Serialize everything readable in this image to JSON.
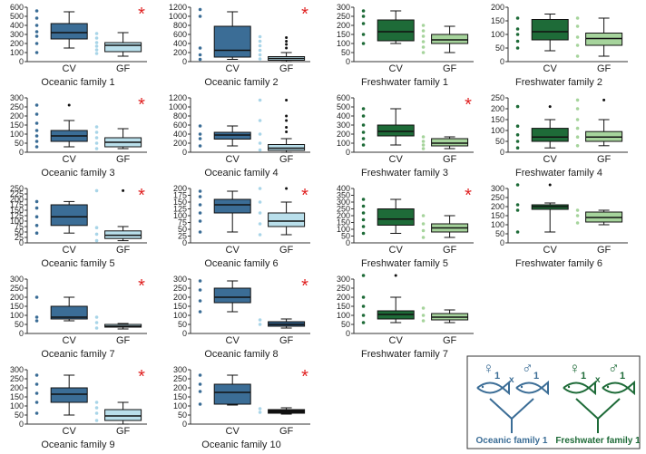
{
  "chart_data": [
    {
      "type": "box",
      "title": "Oceanic family 1",
      "annotation": "*",
      "ylim": [
        0,
        600
      ],
      "yticks": [
        0,
        100,
        200,
        300,
        400,
        500,
        600
      ],
      "groups": [
        {
          "name": "CV",
          "color": "#3b6d96",
          "point_color": "#3b6d96",
          "whisker_low": 150,
          "q1": 250,
          "median": 320,
          "q3": 420,
          "whisker_high": 550,
          "outliers": [],
          "points": [
            100,
            200,
            280,
            330,
            400,
            480,
            560
          ]
        },
        {
          "name": "GF",
          "color": "#b9dfeb",
          "point_color": "#a9d5e8",
          "whisker_low": 60,
          "q1": 110,
          "median": 180,
          "q3": 210,
          "whisker_high": 320,
          "outliers": [],
          "points": [
            90,
            130,
            170,
            210,
            260,
            310
          ]
        }
      ]
    },
    {
      "type": "box",
      "title": "Oceanic family 2",
      "annotation": "*",
      "ylim": [
        0,
        1200
      ],
      "yticks": [
        0,
        200,
        400,
        600,
        800,
        1000,
        1200
      ],
      "groups": [
        {
          "name": "CV",
          "color": "#3b6d96",
          "point_color": "#3b6d96",
          "whisker_low": 50,
          "q1": 100,
          "median": 250,
          "q3": 780,
          "whisker_high": 1100,
          "outliers": [],
          "points": [
            50,
            150,
            300,
            1000,
            1150
          ]
        },
        {
          "name": "GF",
          "color": "#b9dfeb",
          "point_color": "#a9d5e8",
          "whisker_low": 0,
          "q1": 30,
          "median": 70,
          "q3": 110,
          "whisker_high": 200,
          "outliers": [
            300,
            380,
            450,
            530
          ],
          "points": [
            60,
            150,
            250,
            350,
            450,
            550
          ]
        }
      ]
    },
    {
      "type": "box",
      "title": "Freshwater family 1",
      "ylim": [
        0,
        300
      ],
      "yticks": [
        0,
        50,
        100,
        150,
        200,
        250,
        300
      ],
      "groups": [
        {
          "name": "CV",
          "color": "#1e6b38",
          "point_color": "#1e6b38",
          "whisker_low": 100,
          "q1": 115,
          "median": 165,
          "q3": 230,
          "whisker_high": 280,
          "outliers": [],
          "points": [
            100,
            150,
            210,
            250,
            280
          ]
        },
        {
          "name": "GF",
          "color": "#a6d49c",
          "point_color": "#a6d49c",
          "whisker_low": 50,
          "q1": 100,
          "median": 120,
          "q3": 150,
          "whisker_high": 195,
          "outliers": [],
          "points": [
            50,
            80,
            110,
            140,
            170,
            200
          ]
        }
      ]
    },
    {
      "type": "box",
      "title": "Freshwater family 2",
      "ylim": [
        0,
        200
      ],
      "yticks": [
        0,
        50,
        100,
        150,
        200
      ],
      "groups": [
        {
          "name": "CV",
          "color": "#1e6b38",
          "point_color": "#1e6b38",
          "whisker_low": 40,
          "q1": 80,
          "median": 110,
          "q3": 155,
          "whisker_high": 175,
          "outliers": [],
          "points": [
            50,
            75,
            100,
            120,
            160
          ]
        },
        {
          "name": "GF",
          "color": "#a6d49c",
          "point_color": "#a6d49c",
          "whisker_low": 20,
          "q1": 60,
          "median": 85,
          "q3": 105,
          "whisker_high": 160,
          "outliers": [],
          "points": [
            20,
            60,
            90,
            130,
            160
          ]
        }
      ]
    },
    {
      "type": "box",
      "title": "Oceanic family 3",
      "annotation": "*",
      "ylim": [
        0,
        300
      ],
      "yticks": [
        0,
        50,
        100,
        150,
        200,
        250,
        300
      ],
      "groups": [
        {
          "name": "CV",
          "color": "#3b6d96",
          "point_color": "#3b6d96",
          "whisker_low": 30,
          "q1": 60,
          "median": 90,
          "q3": 120,
          "whisker_high": 175,
          "outliers": [
            260
          ],
          "points": [
            30,
            60,
            90,
            120,
            160,
            210,
            260
          ]
        },
        {
          "name": "GF",
          "color": "#b9dfeb",
          "point_color": "#a9d5e8",
          "whisker_low": 20,
          "q1": 30,
          "median": 55,
          "q3": 80,
          "whisker_high": 130,
          "outliers": [],
          "points": [
            20,
            50,
            80,
            110,
            140
          ]
        }
      ]
    },
    {
      "type": "box",
      "title": "Oceanic family 4",
      "ylim": [
        0,
        1200
      ],
      "yticks": [
        0,
        200,
        400,
        600,
        800,
        1000,
        1200
      ],
      "groups": [
        {
          "name": "CV",
          "color": "#3b6d96",
          "point_color": "#3b6d96",
          "whisker_low": 140,
          "q1": 290,
          "median": 380,
          "q3": 440,
          "whisker_high": 580,
          "outliers": [],
          "points": [
            140,
            300,
            400,
            580
          ]
        },
        {
          "name": "GF",
          "color": "#b9dfeb",
          "point_color": "#a9d5e8",
          "whisker_low": 0,
          "q1": 40,
          "median": 90,
          "q3": 170,
          "whisker_high": 300,
          "outliers": [
            450,
            550,
            700,
            800,
            1150
          ],
          "points": [
            50,
            200,
            400,
            700,
            1150
          ]
        }
      ]
    },
    {
      "type": "box",
      "title": "Freshwater family 3",
      "annotation": "*",
      "ylim": [
        0,
        600
      ],
      "yticks": [
        0,
        100,
        200,
        300,
        400,
        500,
        600
      ],
      "groups": [
        {
          "name": "CV",
          "color": "#1e6b38",
          "point_color": "#1e6b38",
          "whisker_low": 80,
          "q1": 180,
          "median": 230,
          "q3": 300,
          "whisker_high": 480,
          "outliers": [],
          "points": [
            80,
            150,
            220,
            300,
            400,
            480
          ]
        },
        {
          "name": "GF",
          "color": "#a6d49c",
          "point_color": "#a6d49c",
          "whisker_low": 40,
          "q1": 70,
          "median": 100,
          "q3": 150,
          "whisker_high": 170,
          "outliers": [],
          "points": [
            40,
            80,
            120,
            170
          ]
        }
      ]
    },
    {
      "type": "box",
      "title": "Freshwater family 4",
      "ylim": [
        0,
        250
      ],
      "yticks": [
        0,
        50,
        100,
        150,
        200,
        250
      ],
      "groups": [
        {
          "name": "CV",
          "color": "#1e6b38",
          "point_color": "#1e6b38",
          "whisker_low": 20,
          "q1": 50,
          "median": 70,
          "q3": 110,
          "whisker_high": 150,
          "outliers": [
            210
          ],
          "points": [
            20,
            50,
            80,
            120,
            210
          ]
        },
        {
          "name": "GF",
          "color": "#a6d49c",
          "point_color": "#a6d49c",
          "whisker_low": 30,
          "q1": 50,
          "median": 70,
          "q3": 95,
          "whisker_high": 150,
          "outliers": [
            240
          ],
          "points": [
            30,
            70,
            110,
            150,
            200,
            240
          ]
        }
      ]
    },
    {
      "type": "box",
      "title": "Oceanic family 5",
      "annotation": "*",
      "ylim": [
        0,
        250
      ],
      "yticks": [
        0,
        25,
        50,
        75,
        100,
        125,
        150,
        175,
        200,
        225,
        250
      ],
      "groups": [
        {
          "name": "CV",
          "color": "#3b6d96",
          "point_color": "#3b6d96",
          "whisker_low": 45,
          "q1": 80,
          "median": 120,
          "q3": 175,
          "whisker_high": 190,
          "outliers": [],
          "points": [
            45,
            80,
            120,
            160,
            190
          ]
        },
        {
          "name": "GF",
          "color": "#b9dfeb",
          "point_color": "#a9d5e8",
          "whisker_low": 10,
          "q1": 20,
          "median": 35,
          "q3": 55,
          "whisker_high": 75,
          "outliers": [
            240
          ],
          "points": [
            10,
            40,
            70,
            240
          ]
        }
      ]
    },
    {
      "type": "box",
      "title": "Oceanic family 6",
      "annotation": "*",
      "ylim": [
        0,
        200
      ],
      "yticks": [
        0,
        25,
        50,
        75,
        100,
        125,
        150,
        175,
        200
      ],
      "groups": [
        {
          "name": "CV",
          "color": "#3b6d96",
          "point_color": "#3b6d96",
          "whisker_low": 40,
          "q1": 110,
          "median": 140,
          "q3": 160,
          "whisker_high": 190,
          "outliers": [],
          "points": [
            40,
            80,
            110,
            140,
            170,
            190
          ]
        },
        {
          "name": "GF",
          "color": "#b9dfeb",
          "point_color": "#a9d5e8",
          "whisker_low": 30,
          "q1": 60,
          "median": 80,
          "q3": 110,
          "whisker_high": 150,
          "outliers": [
            200
          ],
          "points": [
            30,
            70,
            110,
            150,
            200
          ]
        }
      ]
    },
    {
      "type": "box",
      "title": "Freshwater family 5",
      "annotation": "*",
      "ylim": [
        0,
        400
      ],
      "yticks": [
        0,
        50,
        100,
        150,
        200,
        250,
        300,
        350,
        400
      ],
      "groups": [
        {
          "name": "CV",
          "color": "#1e6b38",
          "point_color": "#1e6b38",
          "whisker_low": 70,
          "q1": 130,
          "median": 175,
          "q3": 250,
          "whisker_high": 320,
          "outliers": [],
          "points": [
            70,
            120,
            170,
            220,
            270,
            320
          ]
        },
        {
          "name": "GF",
          "color": "#a6d49c",
          "point_color": "#a6d49c",
          "whisker_low": 40,
          "q1": 80,
          "median": 110,
          "q3": 140,
          "whisker_high": 200,
          "outliers": [],
          "points": [
            40,
            90,
            140,
            200
          ]
        }
      ]
    },
    {
      "type": "box",
      "title": "Freshwater family 6",
      "ylim": [
        0,
        300
      ],
      "yticks": [
        0,
        50,
        100,
        150,
        200,
        250,
        300
      ],
      "groups": [
        {
          "name": "CV",
          "color": "#1e6b38",
          "point_color": "#1e6b38",
          "whisker_low": 60,
          "q1": 185,
          "median": 200,
          "q3": 210,
          "whisker_high": 220,
          "outliers": [
            320
          ],
          "points": [
            60,
            180,
            210,
            320
          ]
        },
        {
          "name": "GF",
          "color": "#a6d49c",
          "point_color": "#a6d49c",
          "whisker_low": 100,
          "q1": 115,
          "median": 140,
          "q3": 170,
          "whisker_high": 180,
          "outliers": [],
          "points": [
            110,
            150,
            180
          ]
        }
      ]
    },
    {
      "type": "box",
      "title": "Oceanic family 7",
      "annotation": "*",
      "ylim": [
        0,
        300
      ],
      "yticks": [
        0,
        50,
        100,
        150,
        200,
        250,
        300
      ],
      "groups": [
        {
          "name": "CV",
          "color": "#3b6d96",
          "point_color": "#3b6d96",
          "whisker_low": 70,
          "q1": 80,
          "median": 90,
          "q3": 150,
          "whisker_high": 200,
          "outliers": [],
          "points": [
            70,
            90,
            200
          ]
        },
        {
          "name": "GF",
          "color": "#b9dfeb",
          "point_color": "#a9d5e8",
          "whisker_low": 25,
          "q1": 35,
          "median": 40,
          "q3": 50,
          "whisker_high": 55,
          "outliers": [],
          "points": [
            30,
            60,
            90
          ]
        }
      ]
    },
    {
      "type": "box",
      "title": "Oceanic family 8",
      "annotation": "*",
      "ylim": [
        0,
        300
      ],
      "yticks": [
        0,
        50,
        100,
        150,
        200,
        250,
        300
      ],
      "groups": [
        {
          "name": "CV",
          "color": "#3b6d96",
          "point_color": "#3b6d96",
          "whisker_low": 120,
          "q1": 170,
          "median": 200,
          "q3": 250,
          "whisker_high": 290,
          "outliers": [],
          "points": [
            120,
            180,
            240,
            290
          ]
        },
        {
          "name": "GF",
          "color": "#2f5d86",
          "point_color": "#a9d5e8",
          "whisker_low": 30,
          "q1": 40,
          "median": 50,
          "q3": 65,
          "whisker_high": 80,
          "outliers": [],
          "points": [
            50,
            75
          ]
        }
      ]
    },
    {
      "type": "box",
      "title": "Freshwater family 7",
      "ylim": [
        0,
        300
      ],
      "yticks": [
        0,
        50,
        100,
        150,
        200,
        250,
        300
      ],
      "groups": [
        {
          "name": "CV",
          "color": "#1e6b38",
          "point_color": "#1e6b38",
          "whisker_low": 60,
          "q1": 80,
          "median": 105,
          "q3": 125,
          "whisker_high": 200,
          "outliers": [
            320
          ],
          "points": [
            60,
            100,
            150,
            200,
            320
          ]
        },
        {
          "name": "GF",
          "color": "#a6d49c",
          "point_color": "#a6d49c",
          "whisker_low": 60,
          "q1": 75,
          "median": 90,
          "q3": 110,
          "whisker_high": 130,
          "outliers": [],
          "points": [
            70,
            100,
            140
          ]
        }
      ]
    },
    {
      "type": "box",
      "title": "Oceanic family 9",
      "annotation": "*",
      "ylim": [
        0,
        300
      ],
      "yticks": [
        0,
        50,
        100,
        150,
        200,
        250,
        300
      ],
      "groups": [
        {
          "name": "CV",
          "color": "#3b6d96",
          "point_color": "#3b6d96",
          "whisker_low": 50,
          "q1": 120,
          "median": 165,
          "q3": 200,
          "whisker_high": 270,
          "outliers": [],
          "points": [
            60,
            120,
            170,
            220,
            270
          ]
        },
        {
          "name": "GF",
          "color": "#b9dfeb",
          "point_color": "#a9d5e8",
          "whisker_low": 0,
          "q1": 20,
          "median": 45,
          "q3": 80,
          "whisker_high": 120,
          "outliers": [],
          "points": [
            20,
            60,
            90,
            120
          ]
        }
      ]
    },
    {
      "type": "box",
      "title": "Oceanic family 10",
      "annotation": "*",
      "ylim": [
        0,
        300
      ],
      "yticks": [
        0,
        50,
        100,
        150,
        200,
        250,
        300
      ],
      "groups": [
        {
          "name": "CV",
          "color": "#3b6d96",
          "point_color": "#3b6d96",
          "whisker_low": 105,
          "q1": 110,
          "median": 175,
          "q3": 220,
          "whisker_high": 270,
          "outliers": [],
          "points": [
            110,
            180,
            220,
            270
          ]
        },
        {
          "name": "GF",
          "color": "#111111",
          "point_color": "#a9d5e8",
          "whisker_low": 55,
          "q1": 60,
          "median": 70,
          "q3": 80,
          "whisker_high": 90,
          "outliers": [],
          "points": [
            65,
            85
          ]
        }
      ]
    }
  ],
  "legend": {
    "female": "♀",
    "male": "♂",
    "subscript": "1",
    "cross": "x",
    "items": [
      {
        "label": "Oceanic family 1",
        "color": "#3b6d96"
      },
      {
        "label": "Freshwater family 1",
        "color": "#1e6b38"
      }
    ]
  }
}
